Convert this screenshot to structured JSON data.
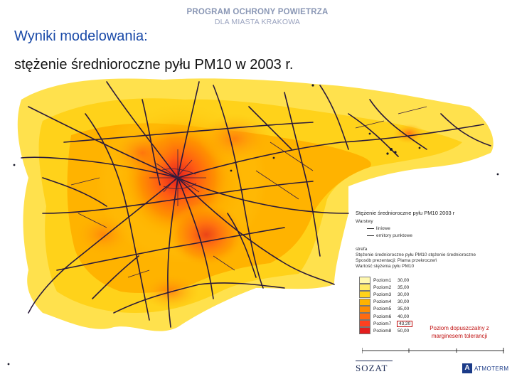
{
  "header": {
    "program": "PROGRAM OCHRONY POWIETRZA",
    "city": "DLA MIASTA KRAKOWA"
  },
  "title": {
    "line1": "Wyniki modelowania:",
    "line2": "stężenie średnioroczne pyłu PM10 w 2003 r."
  },
  "legend": {
    "title": "Stężenie średnioroczne pyłu PM10 2003 r",
    "sources_label": "Warstwy",
    "line_sources": "liniowe",
    "point_sources": "emitory punktowe",
    "zones": "strefa",
    "annual": "Stężenie średnioroczne pyłu PM10 stężenie średnioroczne",
    "presentation": "Sposób prezentacji: Plama przekroczeń",
    "values_label": "Wartość stężenia pyłu PM10",
    "levels": [
      {
        "label": "Poziom1",
        "value": "30,00",
        "color": "#fff8b0"
      },
      {
        "label": "Poziom2",
        "value": "35,00",
        "color": "#ffea66"
      },
      {
        "label": "Poziom3",
        "value": "30,00",
        "color": "#ffd21a"
      },
      {
        "label": "Poziom4",
        "value": "30,00",
        "color": "#ffb300"
      },
      {
        "label": "Poziom5",
        "value": "35,00",
        "color": "#ff8c00"
      },
      {
        "label": "Poziom6",
        "value": "40,00",
        "color": "#ff6a10"
      },
      {
        "label": "Poziom7",
        "value": "43,20",
        "color": "#ff4020"
      },
      {
        "label": "Poziom8",
        "value": "50,00",
        "color": "#e41e1e"
      }
    ],
    "highlight_level": 6
  },
  "note": "Poziom dopuszczalny z marginesem tolerancji",
  "logos": {
    "sozat": "SOZAT",
    "atmoterm": "ATMOTERM",
    "atmoterm_mark": "A"
  },
  "colors": {
    "title_blue": "#1a4aa8",
    "note_red": "#c01010",
    "road": "#2a1a3a"
  }
}
